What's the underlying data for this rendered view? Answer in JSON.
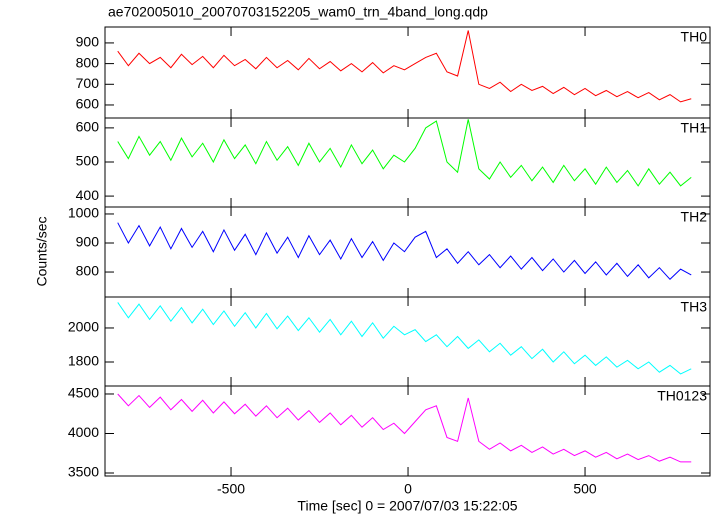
{
  "chart_data": [
    {
      "type": "line",
      "title": "ae702005010_20070703152205_wam0_trn_4band_long.qdp",
      "x": [
        -820,
        -790,
        -760,
        -730,
        -700,
        -670,
        -640,
        -610,
        -580,
        -550,
        -520,
        -490,
        -460,
        -430,
        -400,
        -370,
        -340,
        -310,
        -280,
        -250,
        -220,
        -190,
        -160,
        -130,
        -100,
        -70,
        -40,
        -10,
        20,
        50,
        80,
        110,
        140,
        170,
        200,
        230,
        260,
        290,
        320,
        350,
        380,
        410,
        440,
        470,
        500,
        530,
        560,
        590,
        620,
        650,
        680,
        710,
        740,
        770,
        800
      ],
      "series": [
        {
          "name": "TH0",
          "color": "#ff0000",
          "values": [
            860,
            790,
            850,
            800,
            830,
            780,
            845,
            795,
            835,
            780,
            840,
            790,
            820,
            775,
            830,
            780,
            815,
            770,
            825,
            775,
            810,
            765,
            800,
            760,
            805,
            755,
            790,
            770,
            800,
            830,
            850,
            760,
            740,
            960,
            700,
            680,
            710,
            665,
            700,
            670,
            690,
            655,
            685,
            650,
            680,
            645,
            670,
            640,
            665,
            635,
            660,
            625,
            650,
            615,
            630
          ]
        }
      ],
      "xlim": [
        -856,
        853
      ],
      "xticks": [
        -500,
        0,
        500
      ],
      "ylim": [
        537,
        977
      ],
      "yticks": [
        600,
        700,
        800,
        900
      ]
    },
    {
      "type": "line",
      "x": [
        -820,
        -790,
        -760,
        -730,
        -700,
        -670,
        -640,
        -610,
        -580,
        -550,
        -520,
        -490,
        -460,
        -430,
        -400,
        -370,
        -340,
        -310,
        -280,
        -250,
        -220,
        -190,
        -160,
        -130,
        -100,
        -70,
        -40,
        -10,
        20,
        50,
        80,
        110,
        140,
        170,
        200,
        230,
        260,
        290,
        320,
        350,
        380,
        410,
        440,
        470,
        500,
        530,
        560,
        590,
        620,
        650,
        680,
        710,
        740,
        770,
        800
      ],
      "series": [
        {
          "name": "TH1",
          "color": "#00ff00",
          "values": [
            560,
            510,
            575,
            520,
            560,
            505,
            570,
            515,
            555,
            500,
            565,
            510,
            550,
            495,
            560,
            505,
            545,
            490,
            555,
            500,
            540,
            485,
            550,
            495,
            535,
            480,
            520,
            500,
            540,
            600,
            620,
            500,
            470,
            625,
            480,
            450,
            500,
            455,
            490,
            445,
            485,
            440,
            490,
            445,
            480,
            435,
            485,
            440,
            475,
            430,
            480,
            435,
            470,
            430,
            455
          ]
        }
      ],
      "xlim": [
        -856,
        853
      ],
      "xticks": [
        -500,
        0,
        500
      ],
      "ylim": [
        368,
        629
      ],
      "yticks": [
        400,
        500,
        600
      ]
    },
    {
      "type": "line",
      "ylabel": "Counts/sec",
      "x": [
        -820,
        -790,
        -760,
        -730,
        -700,
        -670,
        -640,
        -610,
        -580,
        -550,
        -520,
        -490,
        -460,
        -430,
        -400,
        -370,
        -340,
        -310,
        -280,
        -250,
        -220,
        -190,
        -160,
        -130,
        -100,
        -70,
        -40,
        -10,
        20,
        50,
        80,
        110,
        140,
        170,
        200,
        230,
        260,
        290,
        320,
        350,
        380,
        410,
        440,
        470,
        500,
        530,
        560,
        590,
        620,
        650,
        680,
        710,
        740,
        770,
        800
      ],
      "series": [
        {
          "name": "TH2",
          "color": "#0000ff",
          "values": [
            970,
            900,
            960,
            890,
            955,
            880,
            950,
            885,
            940,
            870,
            945,
            875,
            930,
            860,
            935,
            865,
            920,
            850,
            925,
            860,
            910,
            845,
            915,
            850,
            905,
            840,
            900,
            870,
            920,
            940,
            850,
            880,
            830,
            870,
            825,
            860,
            815,
            855,
            810,
            850,
            805,
            845,
            800,
            840,
            795,
            835,
            790,
            830,
            785,
            825,
            780,
            815,
            775,
            810,
            790
          ]
        }
      ],
      "xlim": [
        -856,
        853
      ],
      "xticks": [
        -500,
        0,
        500
      ],
      "ylim": [
        714,
        1024
      ],
      "yticks": [
        800,
        900,
        1000
      ]
    },
    {
      "type": "line",
      "x": [
        -820,
        -790,
        -760,
        -730,
        -700,
        -670,
        -640,
        -610,
        -580,
        -550,
        -520,
        -490,
        -460,
        -430,
        -400,
        -370,
        -340,
        -310,
        -280,
        -250,
        -220,
        -190,
        -160,
        -130,
        -100,
        -70,
        -40,
        -10,
        20,
        50,
        80,
        110,
        140,
        170,
        200,
        230,
        260,
        290,
        320,
        350,
        380,
        410,
        440,
        470,
        500,
        530,
        560,
        590,
        620,
        650,
        680,
        710,
        740,
        770,
        800
      ],
      "series": [
        {
          "name": "TH3",
          "color": "#00ffff",
          "values": [
            2150,
            2060,
            2140,
            2050,
            2130,
            2040,
            2120,
            2030,
            2110,
            2020,
            2100,
            2010,
            2090,
            2000,
            2085,
            1995,
            2070,
            1985,
            2060,
            1975,
            2050,
            1960,
            2040,
            1950,
            2030,
            1940,
            2010,
            1960,
            1990,
            1920,
            1960,
            1890,
            1950,
            1880,
            1930,
            1860,
            1910,
            1840,
            1890,
            1820,
            1875,
            1800,
            1860,
            1790,
            1840,
            1780,
            1830,
            1770,
            1810,
            1760,
            1800,
            1740,
            1780,
            1730,
            1760
          ]
        }
      ],
      "xlim": [
        -856,
        853
      ],
      "xticks": [
        -500,
        0,
        500
      ],
      "ylim": [
        1659,
        2182
      ],
      "yticks": [
        1800,
        2000
      ]
    },
    {
      "type": "line",
      "xlabel": "Time [sec] 0 = 2007/07/03 15:22:05",
      "x": [
        -820,
        -790,
        -760,
        -730,
        -700,
        -670,
        -640,
        -610,
        -580,
        -550,
        -520,
        -490,
        -460,
        -430,
        -400,
        -370,
        -340,
        -310,
        -280,
        -250,
        -220,
        -190,
        -160,
        -130,
        -100,
        -70,
        -40,
        -10,
        20,
        50,
        80,
        110,
        140,
        170,
        200,
        230,
        260,
        290,
        320,
        350,
        380,
        410,
        440,
        470,
        500,
        530,
        560,
        590,
        620,
        650,
        680,
        710,
        740,
        770,
        800
      ],
      "series": [
        {
          "name": "TH0123",
          "color": "#ff00ff",
          "values": [
            4500,
            4350,
            4480,
            4330,
            4460,
            4300,
            4430,
            4280,
            4420,
            4260,
            4400,
            4250,
            4370,
            4220,
            4350,
            4200,
            4320,
            4170,
            4290,
            4140,
            4260,
            4110,
            4230,
            4080,
            4200,
            4050,
            4130,
            4000,
            4150,
            4300,
            4350,
            3950,
            3900,
            4450,
            3900,
            3800,
            3880,
            3780,
            3850,
            3760,
            3830,
            3740,
            3800,
            3720,
            3780,
            3700,
            3760,
            3680,
            3740,
            3670,
            3720,
            3650,
            3700,
            3640,
            3640
          ]
        }
      ],
      "xlim": [
        -856,
        853
      ],
      "xticks": [
        -500,
        0,
        500
      ],
      "ylim": [
        3462,
        4601
      ],
      "yticks": [
        3500,
        4000,
        4500
      ]
    }
  ]
}
